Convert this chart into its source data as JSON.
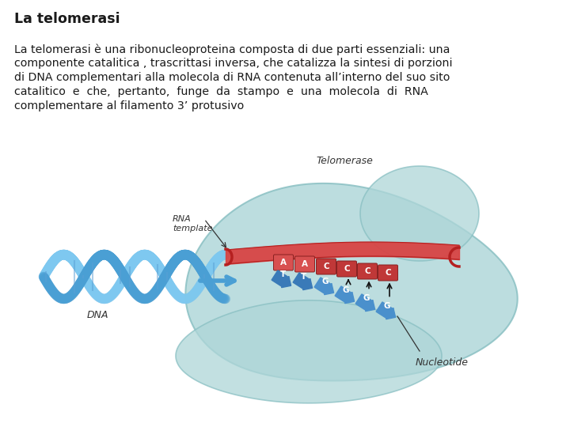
{
  "title": "La telomerasi",
  "lines": [
    "La telomerasi è una ribonucleoproteina composta di due parti essenziali: una",
    "componente catalitica , trascrittasi inversa, che catalizza la sintesi di porzioni",
    "di DNA complementari alla molecola di RNA contenuta all’interno del suo sito",
    "catalitico  e  che,  pertanto,  funge  da  stampo  e  una  molecola  di  RNA",
    "complementare al filamento 3’ protusivo"
  ],
  "background_color": "#ffffff",
  "title_color": "#1a1a1a",
  "body_color": "#1a1a1a",
  "title_fontsize": 12.5,
  "body_fontsize": 10.2,
  "blob_color": "#aed6d8",
  "blob_edge_color": "#88bfc2",
  "rna_color": "#d94040",
  "rna_edge_color": "#b52020",
  "dna_color1": "#7ec8f0",
  "dna_color2": "#4a9fd4",
  "block_T_color": "#3a7ab8",
  "block_G_color": "#4a90cc",
  "block_A_color": "#d85050",
  "block_C_color": "#c03838",
  "label_color": "#333333",
  "telomerase_label": "Telomerase",
  "rna_label": "RNA\ntemplate",
  "dna_label": "DNA",
  "nucleotide_label": "Nucleotide"
}
